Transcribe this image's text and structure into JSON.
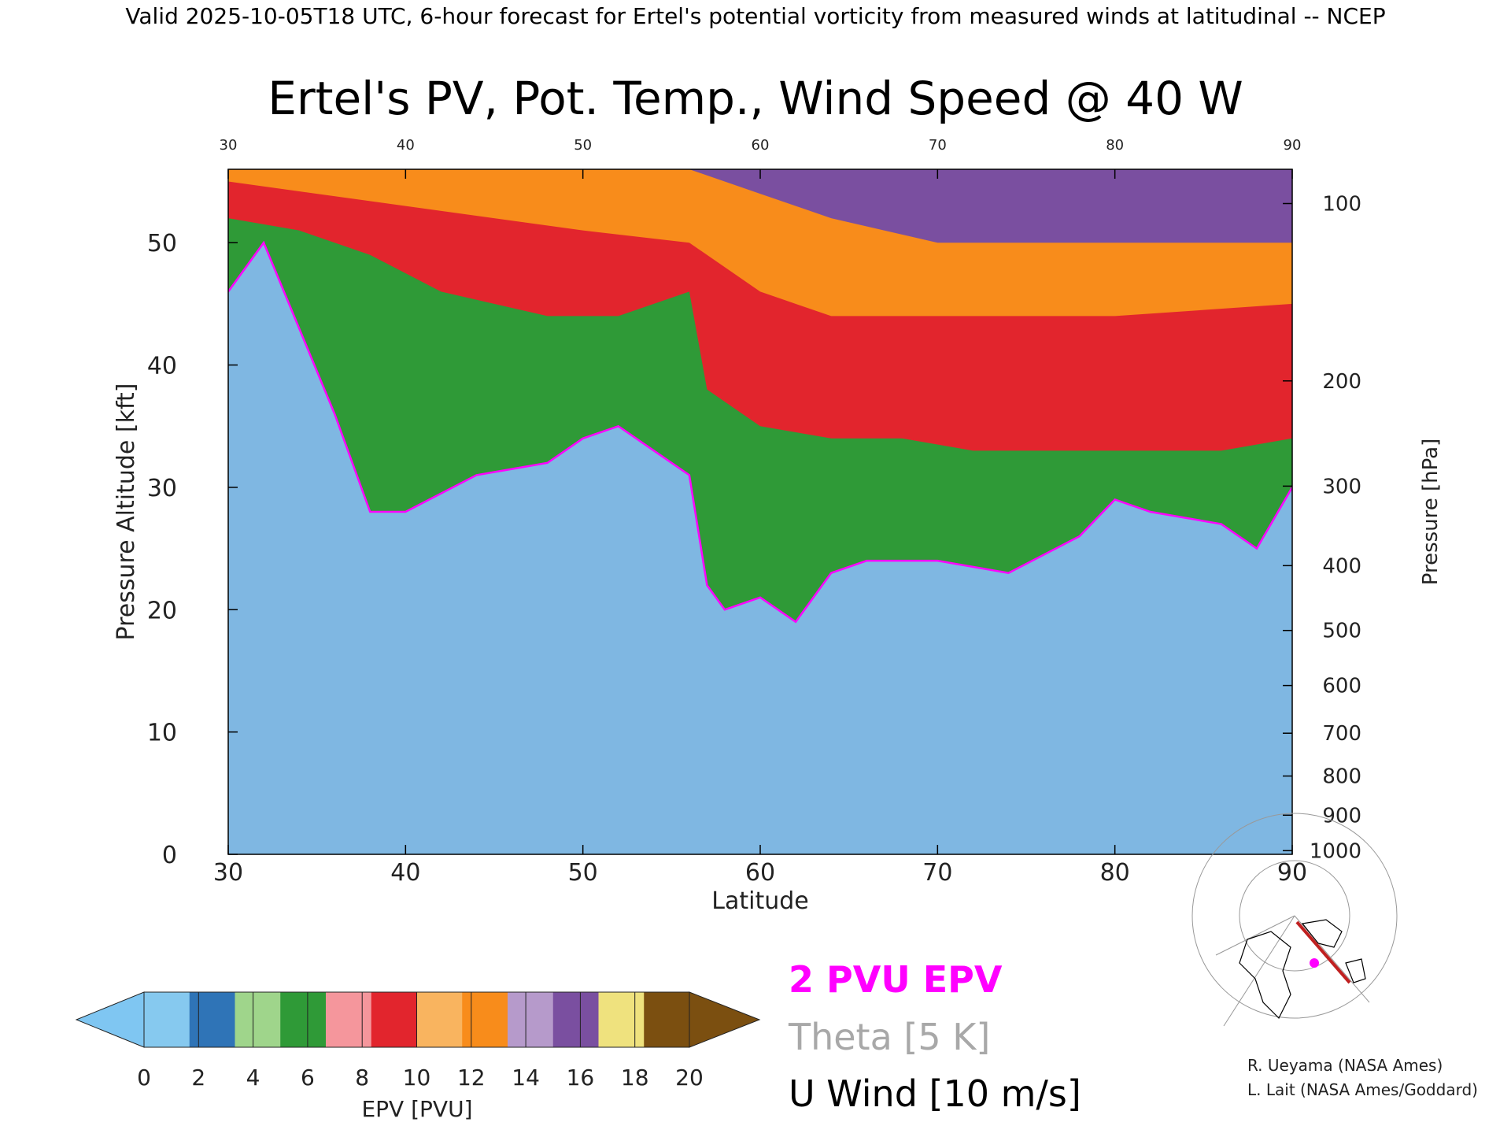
{
  "header": "Valid 2025-10-05T18 UTC, 6-hour forecast for Ertel's potential vorticity from measured winds at latitudinal -- NCEP",
  "credits": [
    "R. Ueyama (NASA Ames)",
    "L. Lait (NASA Ames/Goddard)"
  ],
  "legend_entries": {
    "epv": {
      "label": "2 PVU EPV",
      "color": "#ff00ff"
    },
    "theta": {
      "label": "Theta [5 K]",
      "color": "#a8a8a8"
    },
    "wind": {
      "label": "U Wind [10 m/s]",
      "color": "#000000"
    }
  },
  "colorbar": {
    "label": "EPV [PVU]",
    "ticks": [
      "0",
      "2",
      "4",
      "6",
      "8",
      "10",
      "12",
      "14",
      "16",
      "18",
      "20"
    ],
    "colors": [
      "#86c9ef",
      "#2f74b7",
      "#9fd58b",
      "#2f9a37",
      "#f5969c",
      "#e2252d",
      "#f9b45f",
      "#f88c1b",
      "#b69acb",
      "#7a4fa0",
      "#efe27e",
      "#7b4f10"
    ],
    "under_color": "#7fc6f2",
    "over_color": "#7b4f10"
  },
  "map_inset": {
    "icon": "polar-stereographic-map-icon",
    "path_color": "#c02020",
    "marker_color": "#ff00ff"
  },
  "chart_data": {
    "type": "heatmap",
    "title": "Ertel's PV, Pot. Temp., Wind Speed @ 40 W",
    "xlabel": "Latitude",
    "ylabel": "Pressure Altitude [kft]",
    "y2label": "Pressure [hPa]",
    "xlim": [
      30,
      90
    ],
    "ylim": [
      0,
      56
    ],
    "x_ticks": [
      "30",
      "40",
      "50",
      "60",
      "70",
      "80",
      "90"
    ],
    "y_ticks": [
      "0",
      "10",
      "20",
      "30",
      "40",
      "50"
    ],
    "pressure_ticks": [
      {
        "label": "100",
        "kft": 53.2
      },
      {
        "label": "200",
        "kft": 38.7
      },
      {
        "label": "300",
        "kft": 30.1
      },
      {
        "label": "400",
        "kft": 23.6
      },
      {
        "label": "500",
        "kft": 18.3
      },
      {
        "label": "600",
        "kft": 13.8
      },
      {
        "label": "700",
        "kft": 9.9
      },
      {
        "label": "800",
        "kft": 6.4
      },
      {
        "label": "900",
        "kft": 3.2
      },
      {
        "label": "1000",
        "kft": 0.3
      }
    ],
    "series": [
      {
        "name": "2 PVU EPV",
        "color": "#ff00ff",
        "x": [
          30,
          32,
          34,
          36,
          38,
          40,
          44,
          48,
          50,
          52,
          54,
          56,
          57,
          58,
          60,
          62,
          64,
          66,
          70,
          74,
          78,
          80,
          82,
          86,
          88,
          90
        ],
        "y": [
          46,
          50,
          43,
          36,
          28,
          28,
          31,
          32,
          34,
          35,
          33,
          31,
          22,
          20,
          21,
          19,
          23,
          24,
          24,
          23,
          26,
          29,
          28,
          27,
          25,
          30
        ]
      },
      {
        "name": "tropopause (EPV 8)",
        "x": [
          30,
          34,
          38,
          42,
          48,
          52,
          56,
          57,
          60,
          64,
          68,
          72,
          80,
          86,
          90
        ],
        "y": [
          52,
          51,
          49,
          46,
          44,
          44,
          46,
          38,
          35,
          34,
          34,
          33,
          33,
          33,
          34
        ]
      },
      {
        "name": "EPV 12 level",
        "x": [
          30,
          40,
          50,
          56,
          60,
          64,
          70,
          80,
          90
        ],
        "y": [
          55,
          53,
          51,
          50,
          46,
          44,
          44,
          44,
          45
        ]
      },
      {
        "name": "EPV 16 level",
        "x": [
          56,
          60,
          64,
          70,
          80,
          90
        ],
        "y": [
          56,
          54,
          52,
          50,
          50,
          50
        ]
      }
    ],
    "annotations": [
      "2 PVU EPV",
      "Theta [5 K]",
      "U Wind [10 m/s]"
    ],
    "grid": false
  }
}
